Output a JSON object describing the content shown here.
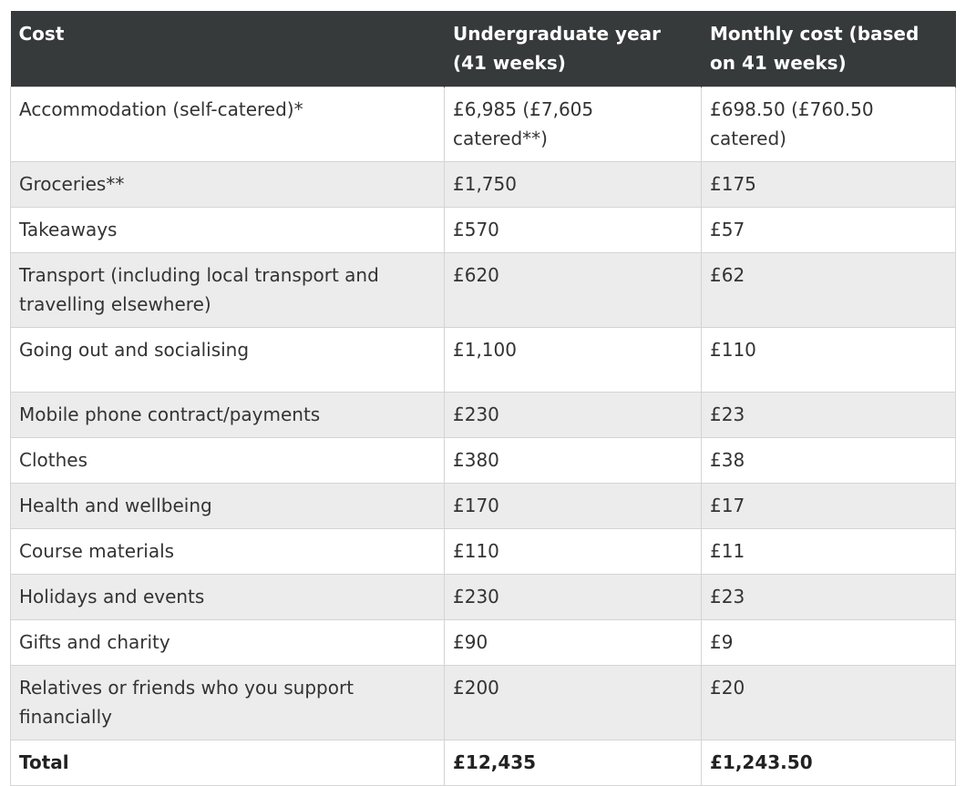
{
  "table": {
    "headers": [
      "Cost",
      "Undergraduate year (41 weeks)",
      "Monthly cost (based on 41 weeks)"
    ],
    "rows": [
      [
        "Accommodation (self-catered)*",
        "£6,985 (£7,605 catered**)",
        "£698.50 (£760.50 catered)"
      ],
      [
        "Groceries**",
        "£1,750",
        "£175"
      ],
      [
        "Takeaways",
        "£570",
        "£57"
      ],
      [
        "Transport (including local transport and travelling elsewhere)",
        "£620",
        " £62"
      ],
      [
        "Going out and socialising",
        "£1,100",
        "£110"
      ],
      [
        "Mobile phone contract/payments",
        "£230",
        "£23"
      ],
      [
        "Clothes",
        "£380",
        "£38"
      ],
      [
        "Health and wellbeing",
        "£170",
        "£17"
      ],
      [
        "Course materials",
        "£110",
        "£11"
      ],
      [
        "Holidays and events",
        "£230",
        "£23"
      ],
      [
        "Gifts and charity",
        "£90",
        "£9"
      ],
      [
        "Relatives or friends who you support financially",
        "£200",
        "£20"
      ],
      [
        "Total",
        "£12,435",
        " £1,243.50"
      ]
    ]
  },
  "colors": {
    "header_background": "#373a3a",
    "header_text": "#ffffff",
    "stripe": "#ececec",
    "border": "#d4d4d4",
    "body_text": "#333333"
  }
}
